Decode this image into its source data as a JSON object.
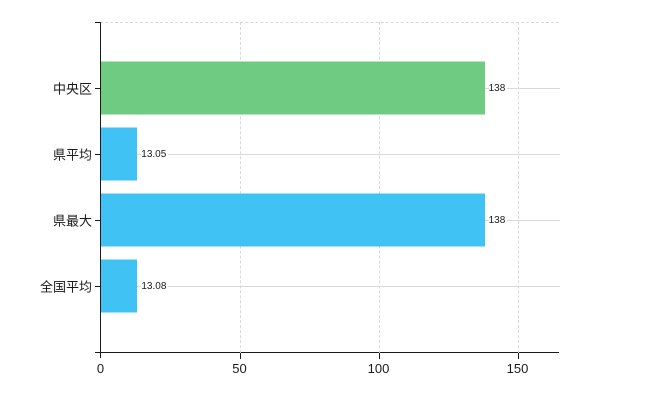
{
  "chart_data": {
    "type": "bar",
    "orientation": "horizontal",
    "title": "",
    "xlabel": "",
    "ylabel": "",
    "categories": [
      "中央区",
      "県平均",
      "県最大",
      "全国平均"
    ],
    "values": [
      138,
      13.05,
      138,
      13.08
    ],
    "value_labels": [
      "138",
      "13.05",
      "138",
      "13.08"
    ],
    "x_tick_labels": [
      "0",
      "50",
      "100",
      "150"
    ],
    "x_tick_values": [
      0,
      50,
      100,
      150
    ],
    "xlim": [
      0,
      165
    ],
    "grid": true,
    "legend_position": "none",
    "colors": {
      "green_bar": "#6fca82",
      "blue_bar": "#41c2f4",
      "grid_line": "#d9d9d9",
      "axis_line": "#1a1a1a",
      "text": "#1a1a1a",
      "background": "#ffffff"
    },
    "bar_color_keys": [
      "green_bar",
      "blue_bar",
      "blue_bar",
      "blue_bar"
    ]
  }
}
